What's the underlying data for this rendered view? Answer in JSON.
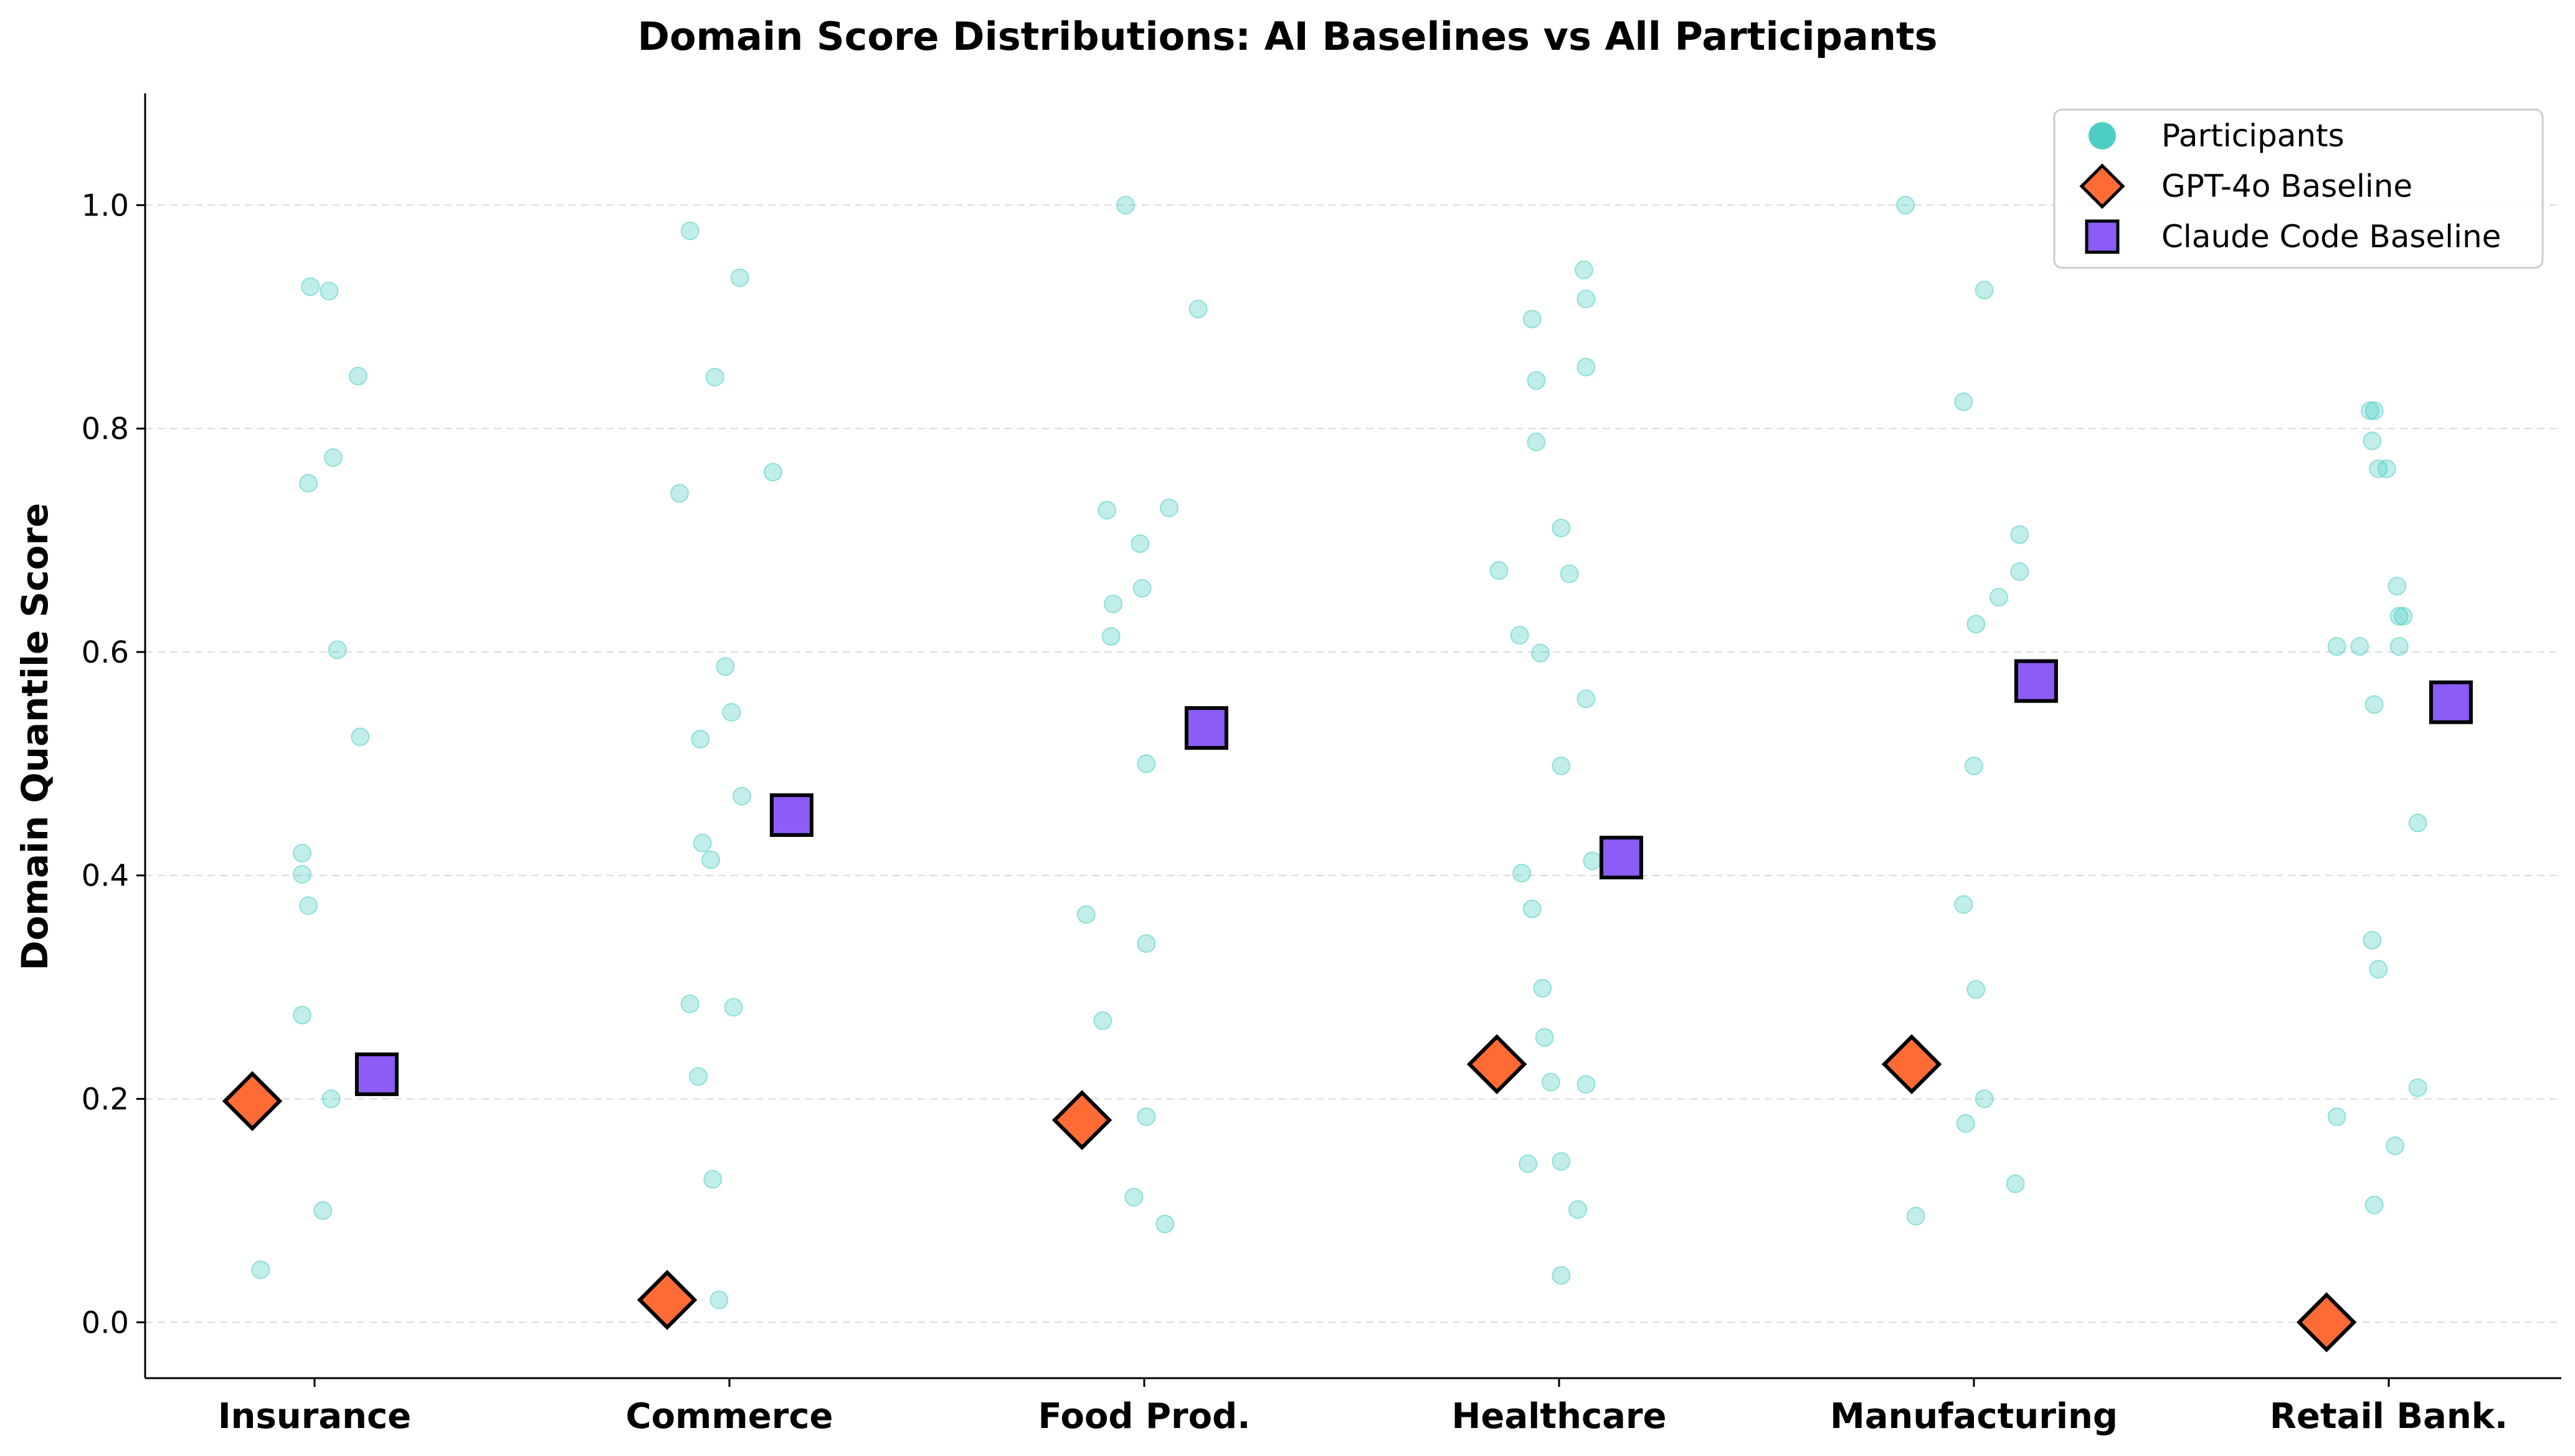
{
  "chart_data": {
    "type": "scatter",
    "title": "Domain Score Distributions: AI Baselines vs All Participants",
    "ylabel": "Domain Quantile Score",
    "xlabel": "",
    "ylim": [
      -0.05,
      1.1
    ],
    "yticks": [
      "0.0",
      "0.2",
      "0.4",
      "0.6",
      "0.8",
      "1.0"
    ],
    "ytick_values": [
      0.0,
      0.2,
      0.4,
      0.6,
      0.8,
      1.0
    ],
    "grid": "horizontal dashed",
    "legend_placement": "top-right",
    "categories": [
      "Insurance",
      "Commerce",
      "Food Prod.",
      "Healthcare",
      "Manufacturing",
      "Retail Bank."
    ],
    "series": [
      {
        "name": "Participants",
        "marker": "circle",
        "color": "#4ecdc4",
        "points": [
          {
            "category": "Insurance",
            "offset": -0.01,
            "y": 0.927
          },
          {
            "category": "Insurance",
            "offset": 0.035,
            "y": 0.923
          },
          {
            "category": "Insurance",
            "offset": 0.105,
            "y": 0.847
          },
          {
            "category": "Insurance",
            "offset": 0.045,
            "y": 0.774
          },
          {
            "category": "Insurance",
            "offset": -0.015,
            "y": 0.751
          },
          {
            "category": "Insurance",
            "offset": 0.055,
            "y": 0.602
          },
          {
            "category": "Insurance",
            "offset": 0.11,
            "y": 0.524
          },
          {
            "category": "Insurance",
            "offset": -0.03,
            "y": 0.42
          },
          {
            "category": "Insurance",
            "offset": -0.03,
            "y": 0.401
          },
          {
            "category": "Insurance",
            "offset": -0.015,
            "y": 0.373
          },
          {
            "category": "Insurance",
            "offset": -0.03,
            "y": 0.275
          },
          {
            "category": "Insurance",
            "offset": 0.04,
            "y": 0.2
          },
          {
            "category": "Insurance",
            "offset": 0.02,
            "y": 0.1
          },
          {
            "category": "Insurance",
            "offset": -0.13,
            "y": 0.047
          },
          {
            "category": "Commerce",
            "offset": -0.095,
            "y": 0.977
          },
          {
            "category": "Commerce",
            "offset": 0.025,
            "y": 0.935
          },
          {
            "category": "Commerce",
            "offset": -0.035,
            "y": 0.846
          },
          {
            "category": "Commerce",
            "offset": 0.105,
            "y": 0.761
          },
          {
            "category": "Commerce",
            "offset": -0.12,
            "y": 0.742
          },
          {
            "category": "Commerce",
            "offset": -0.01,
            "y": 0.587
          },
          {
            "category": "Commerce",
            "offset": 0.005,
            "y": 0.546
          },
          {
            "category": "Commerce",
            "offset": -0.07,
            "y": 0.522
          },
          {
            "category": "Commerce",
            "offset": 0.03,
            "y": 0.471
          },
          {
            "category": "Commerce",
            "offset": -0.065,
            "y": 0.429
          },
          {
            "category": "Commerce",
            "offset": -0.045,
            "y": 0.414
          },
          {
            "category": "Commerce",
            "offset": -0.095,
            "y": 0.285
          },
          {
            "category": "Commerce",
            "offset": 0.01,
            "y": 0.282
          },
          {
            "category": "Commerce",
            "offset": -0.075,
            "y": 0.22
          },
          {
            "category": "Commerce",
            "offset": -0.04,
            "y": 0.128
          },
          {
            "category": "Commerce",
            "offset": -0.025,
            "y": 0.02
          },
          {
            "category": "Food Prod.",
            "offset": -0.045,
            "y": 1.0
          },
          {
            "category": "Food Prod.",
            "offset": 0.13,
            "y": 0.907
          },
          {
            "category": "Food Prod.",
            "offset": 0.06,
            "y": 0.729
          },
          {
            "category": "Food Prod.",
            "offset": -0.09,
            "y": 0.727
          },
          {
            "category": "Food Prod.",
            "offset": -0.01,
            "y": 0.697
          },
          {
            "category": "Food Prod.",
            "offset": -0.075,
            "y": 0.643
          },
          {
            "category": "Food Prod.",
            "offset": -0.005,
            "y": 0.657
          },
          {
            "category": "Food Prod.",
            "offset": -0.08,
            "y": 0.614
          },
          {
            "category": "Food Prod.",
            "offset": 0.005,
            "y": 0.5
          },
          {
            "category": "Food Prod.",
            "offset": -0.14,
            "y": 0.365
          },
          {
            "category": "Food Prod.",
            "offset": 0.005,
            "y": 0.339
          },
          {
            "category": "Food Prod.",
            "offset": -0.1,
            "y": 0.27
          },
          {
            "category": "Food Prod.",
            "offset": 0.005,
            "y": 0.184
          },
          {
            "category": "Food Prod.",
            "offset": -0.025,
            "y": 0.112
          },
          {
            "category": "Food Prod.",
            "offset": 0.05,
            "y": 0.088
          },
          {
            "category": "Healthcare",
            "offset": 0.06,
            "y": 0.942
          },
          {
            "category": "Healthcare",
            "offset": 0.065,
            "y": 0.916
          },
          {
            "category": "Healthcare",
            "offset": -0.065,
            "y": 0.898
          },
          {
            "category": "Healthcare",
            "offset": 0.065,
            "y": 0.855
          },
          {
            "category": "Healthcare",
            "offset": -0.055,
            "y": 0.843
          },
          {
            "category": "Healthcare",
            "offset": -0.055,
            "y": 0.788
          },
          {
            "category": "Healthcare",
            "offset": 0.005,
            "y": 0.711
          },
          {
            "category": "Healthcare",
            "offset": -0.145,
            "y": 0.673
          },
          {
            "category": "Healthcare",
            "offset": 0.025,
            "y": 0.67
          },
          {
            "category": "Healthcare",
            "offset": -0.095,
            "y": 0.615
          },
          {
            "category": "Healthcare",
            "offset": -0.045,
            "y": 0.599
          },
          {
            "category": "Healthcare",
            "offset": 0.065,
            "y": 0.558
          },
          {
            "category": "Healthcare",
            "offset": 0.005,
            "y": 0.498
          },
          {
            "category": "Healthcare",
            "offset": 0.08,
            "y": 0.413
          },
          {
            "category": "Healthcare",
            "offset": -0.09,
            "y": 0.402
          },
          {
            "category": "Healthcare",
            "offset": -0.065,
            "y": 0.37
          },
          {
            "category": "Healthcare",
            "offset": -0.04,
            "y": 0.299
          },
          {
            "category": "Healthcare",
            "offset": -0.035,
            "y": 0.255
          },
          {
            "category": "Healthcare",
            "offset": -0.02,
            "y": 0.215
          },
          {
            "category": "Healthcare",
            "offset": 0.065,
            "y": 0.213
          },
          {
            "category": "Healthcare",
            "offset": -0.075,
            "y": 0.142
          },
          {
            "category": "Healthcare",
            "offset": 0.005,
            "y": 0.144
          },
          {
            "category": "Healthcare",
            "offset": 0.045,
            "y": 0.101
          },
          {
            "category": "Healthcare",
            "offset": 0.005,
            "y": 0.042
          },
          {
            "category": "Manufacturing",
            "offset": -0.165,
            "y": 1.0
          },
          {
            "category": "Manufacturing",
            "offset": 0.025,
            "y": 0.924
          },
          {
            "category": "Manufacturing",
            "offset": -0.025,
            "y": 0.824
          },
          {
            "category": "Manufacturing",
            "offset": 0.11,
            "y": 0.705
          },
          {
            "category": "Manufacturing",
            "offset": 0.11,
            "y": 0.672
          },
          {
            "category": "Manufacturing",
            "offset": 0.06,
            "y": 0.649
          },
          {
            "category": "Manufacturing",
            "offset": 0.005,
            "y": 0.625
          },
          {
            "category": "Manufacturing",
            "offset": 0.0,
            "y": 0.498
          },
          {
            "category": "Manufacturing",
            "offset": -0.025,
            "y": 0.374
          },
          {
            "category": "Manufacturing",
            "offset": 0.005,
            "y": 0.298
          },
          {
            "category": "Manufacturing",
            "offset": 0.025,
            "y": 0.2
          },
          {
            "category": "Manufacturing",
            "offset": -0.02,
            "y": 0.178
          },
          {
            "category": "Manufacturing",
            "offset": 0.1,
            "y": 0.124
          },
          {
            "category": "Manufacturing",
            "offset": -0.14,
            "y": 0.095
          },
          {
            "category": "Retail Bank.",
            "offset": -0.045,
            "y": 0.816
          },
          {
            "category": "Retail Bank.",
            "offset": -0.035,
            "y": 0.816
          },
          {
            "category": "Retail Bank.",
            "offset": -0.04,
            "y": 0.789
          },
          {
            "category": "Retail Bank.",
            "offset": -0.025,
            "y": 0.764
          },
          {
            "category": "Retail Bank.",
            "offset": -0.005,
            "y": 0.764
          },
          {
            "category": "Retail Bank.",
            "offset": 0.02,
            "y": 0.659
          },
          {
            "category": "Retail Bank.",
            "offset": 0.025,
            "y": 0.632
          },
          {
            "category": "Retail Bank.",
            "offset": 0.035,
            "y": 0.632
          },
          {
            "category": "Retail Bank.",
            "offset": -0.125,
            "y": 0.605
          },
          {
            "category": "Retail Bank.",
            "offset": -0.07,
            "y": 0.605
          },
          {
            "category": "Retail Bank.",
            "offset": 0.025,
            "y": 0.605
          },
          {
            "category": "Retail Bank.",
            "offset": -0.035,
            "y": 0.553
          },
          {
            "category": "Retail Bank.",
            "offset": 0.07,
            "y": 0.447
          },
          {
            "category": "Retail Bank.",
            "offset": -0.04,
            "y": 0.342
          },
          {
            "category": "Retail Bank.",
            "offset": -0.025,
            "y": 0.316
          },
          {
            "category": "Retail Bank.",
            "offset": 0.07,
            "y": 0.21
          },
          {
            "category": "Retail Bank.",
            "offset": -0.125,
            "y": 0.184
          },
          {
            "category": "Retail Bank.",
            "offset": 0.015,
            "y": 0.158
          },
          {
            "category": "Retail Bank.",
            "offset": -0.035,
            "y": 0.105
          }
        ]
      },
      {
        "name": "GPT-4o Baseline",
        "marker": "diamond",
        "color": "#ff6b35",
        "offset": -0.15,
        "values": [
          0.198,
          0.02,
          0.181,
          0.231,
          0.231,
          0.0
        ]
      },
      {
        "name": "Claude Code Baseline",
        "marker": "square",
        "color": "#8b5cf6",
        "offset": 0.15,
        "values": [
          0.222,
          0.454,
          0.532,
          0.416,
          0.574,
          0.555
        ]
      }
    ]
  }
}
